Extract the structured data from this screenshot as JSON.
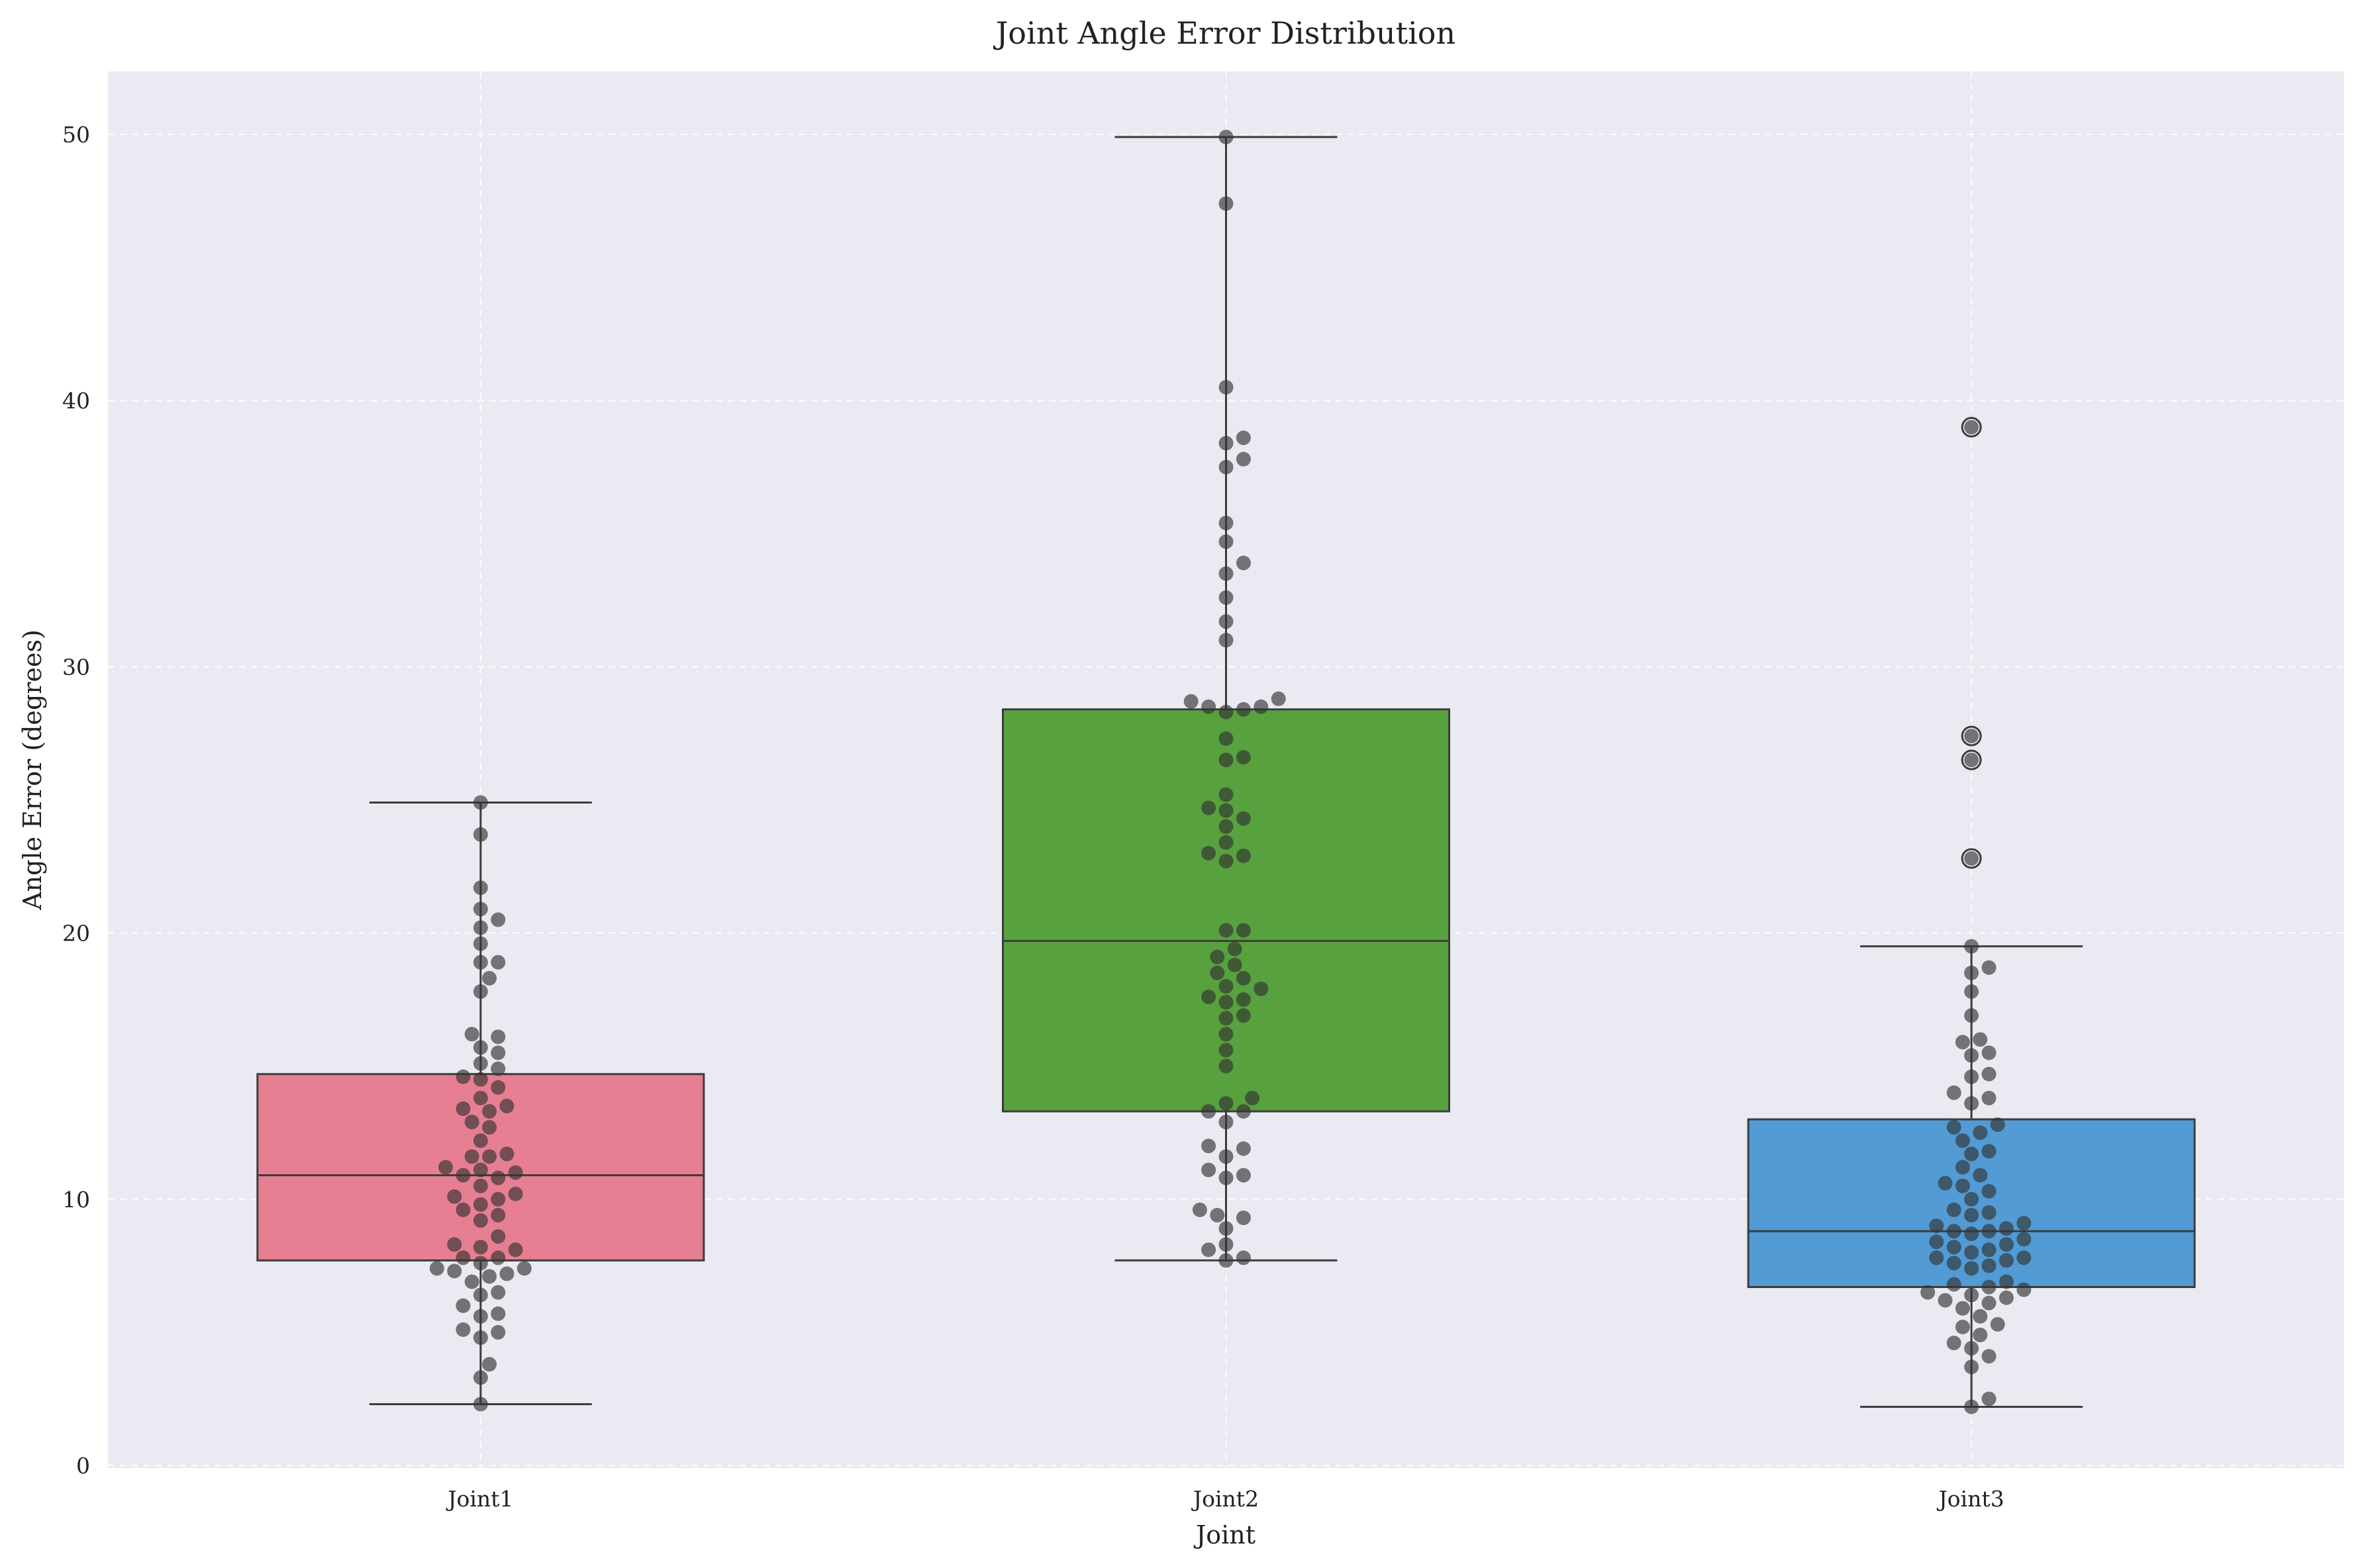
{
  "chart_data": {
    "type": "box",
    "title": "Joint Angle Error Distribution",
    "xlabel": "Joint",
    "ylabel": "Angle Error (degrees)",
    "ylim": [
      0,
      52.3
    ],
    "yticks": [
      0,
      10,
      20,
      30,
      40,
      50
    ],
    "grid": true,
    "legend": "none",
    "categories": [
      "Joint1",
      "Joint2",
      "Joint3"
    ],
    "series": [
      {
        "category": "Joint1",
        "color": "#e77f92",
        "whisker_low": 2.3,
        "q1": 7.7,
        "median": 10.9,
        "q3": 14.7,
        "whisker_high": 24.9,
        "outliers": [],
        "points": [
          24.9,
          23.7,
          21.7,
          20.9,
          20.5,
          20.2,
          19.6,
          18.9,
          18.9,
          18.3,
          17.8,
          16.2,
          16.1,
          15.7,
          15.5,
          15.1,
          14.9,
          14.6,
          14.5,
          14.2,
          13.8,
          13.5,
          13.4,
          13.3,
          12.9,
          12.7,
          12.2,
          11.7,
          11.6,
          11.6,
          11.2,
          11.1,
          11.0,
          10.9,
          10.8,
          10.5,
          10.2,
          10.1,
          10.0,
          9.8,
          9.6,
          9.4,
          9.2,
          8.6,
          8.3,
          8.2,
          8.1,
          7.8,
          7.8,
          7.6,
          7.4,
          7.4,
          7.3,
          7.2,
          7.1,
          6.9,
          6.5,
          6.4,
          6.0,
          5.7,
          5.6,
          5.1,
          5.0,
          4.8,
          3.8,
          3.3,
          2.3
        ]
      },
      {
        "category": "Joint2",
        "color": "#57a23e",
        "whisker_low": 7.7,
        "q1": 13.3,
        "median": 19.7,
        "q3": 28.4,
        "whisker_high": 49.9,
        "outliers": [],
        "points": [
          49.9,
          47.4,
          40.5,
          38.6,
          38.4,
          37.8,
          37.5,
          35.4,
          34.7,
          33.9,
          33.5,
          32.6,
          31.7,
          31.0,
          28.8,
          28.7,
          28.5,
          28.5,
          28.4,
          28.3,
          27.3,
          26.6,
          26.5,
          25.2,
          24.7,
          24.6,
          24.3,
          24.0,
          23.4,
          23.0,
          22.9,
          22.7,
          20.1,
          20.1,
          19.4,
          19.1,
          18.8,
          18.5,
          18.3,
          18.0,
          17.9,
          17.6,
          17.5,
          17.4,
          16.9,
          16.8,
          16.2,
          15.6,
          15.0,
          13.8,
          13.6,
          13.3,
          13.3,
          12.9,
          12.0,
          11.9,
          11.6,
          11.1,
          10.9,
          10.8,
          9.6,
          9.4,
          9.3,
          8.9,
          8.3,
          8.1,
          7.8,
          7.7
        ]
      },
      {
        "category": "Joint3",
        "color": "#529bd4",
        "whisker_low": 2.2,
        "q1": 6.7,
        "median": 8.8,
        "q3": 13.0,
        "whisker_high": 19.5,
        "outliers": [
          39.0,
          27.4,
          26.5,
          22.8
        ],
        "points": [
          39.0,
          27.4,
          26.5,
          22.8,
          19.5,
          18.7,
          18.5,
          17.8,
          16.9,
          16.0,
          15.9,
          15.5,
          15.4,
          14.7,
          14.6,
          14.0,
          13.8,
          13.6,
          12.8,
          12.7,
          12.5,
          12.2,
          11.8,
          11.7,
          11.2,
          10.9,
          10.6,
          10.5,
          10.3,
          10.0,
          9.6,
          9.5,
          9.4,
          9.1,
          9.0,
          8.9,
          8.8,
          8.8,
          8.7,
          8.5,
          8.4,
          8.3,
          8.2,
          8.1,
          8.0,
          7.8,
          7.8,
          7.7,
          7.6,
          7.5,
          7.4,
          6.9,
          6.8,
          6.7,
          6.6,
          6.5,
          6.4,
          6.3,
          6.2,
          6.1,
          5.9,
          5.6,
          5.3,
          5.2,
          4.9,
          4.6,
          4.4,
          4.1,
          3.7,
          2.5,
          2.2
        ]
      }
    ]
  },
  "colors": {
    "plot_background": "#eaeaf2",
    "box_edge": "#3c3c3c",
    "point": "#333333",
    "grid": "#ffffff"
  }
}
